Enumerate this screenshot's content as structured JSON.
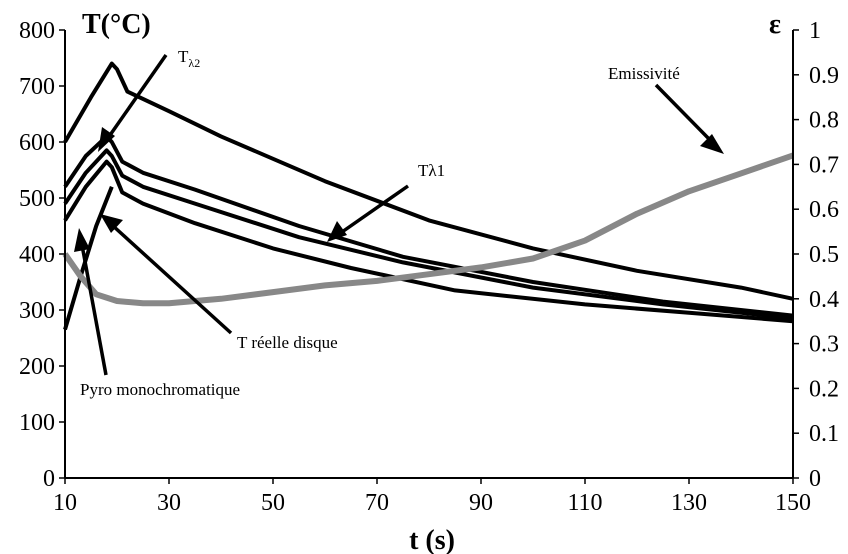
{
  "chart_data": {
    "type": "line",
    "xlabel": "t (s)",
    "ylabel_left": "T(°C)",
    "ylabel_right": "ε",
    "xlim": [
      10,
      150
    ],
    "ylim_left": [
      0,
      800
    ],
    "ylim_right": [
      0,
      1
    ],
    "x_ticks": [
      "10",
      "30",
      "50",
      "70",
      "90",
      "110",
      "130",
      "150"
    ],
    "y_left_ticks": [
      "0",
      "100",
      "200",
      "300",
      "400",
      "500",
      "600",
      "700",
      "800"
    ],
    "y_right_ticks": [
      "0",
      "0.1",
      "0.2",
      "0.3",
      "0.4",
      "0.5",
      "0.6",
      "0.7",
      "0.8",
      "0.9",
      "1"
    ],
    "grid": false,
    "series": [
      {
        "axis": "left",
        "color": "#000000",
        "x": [
          10,
          15,
          19,
          20,
          22,
          30,
          40,
          60,
          80,
          100,
          120,
          140,
          150
        ],
        "y": [
          600,
          680,
          740,
          730,
          690,
          655,
          610,
          530,
          460,
          410,
          370,
          340,
          320
        ]
      },
      {
        "axis": "left",
        "color": "#000000",
        "x": [
          10,
          14,
          18,
          19,
          21,
          25,
          35,
          55,
          75,
          100,
          125,
          150
        ],
        "y": [
          520,
          575,
          610,
          600,
          565,
          545,
          515,
          450,
          395,
          350,
          315,
          290
        ]
      },
      {
        "axis": "left",
        "color": "#000000",
        "x": [
          10,
          14,
          18,
          19,
          21,
          25,
          35,
          55,
          75,
          100,
          125,
          150
        ],
        "y": [
          490,
          545,
          585,
          575,
          540,
          520,
          490,
          430,
          385,
          340,
          310,
          285
        ]
      },
      {
        "axis": "left",
        "color": "#000000",
        "x": [
          10,
          14,
          18,
          19,
          21,
          25,
          35,
          50,
          65,
          85,
          110,
          130,
          150
        ],
        "y": [
          460,
          520,
          565,
          555,
          510,
          490,
          455,
          410,
          375,
          335,
          310,
          295,
          280
        ]
      },
      {
        "axis": "left",
        "color": "#000000",
        "x": [
          10,
          13,
          16,
          19
        ],
        "y": [
          265,
          360,
          450,
          520
        ]
      },
      {
        "axis": "right",
        "color": "#888888",
        "x": [
          10,
          13,
          16,
          20,
          25,
          30,
          40,
          50,
          60,
          70,
          80,
          90,
          100,
          110,
          120,
          130,
          140,
          150
        ],
        "y": [
          0.5,
          0.45,
          0.41,
          0.395,
          0.39,
          0.39,
          0.4,
          0.415,
          0.43,
          0.44,
          0.455,
          0.47,
          0.49,
          0.53,
          0.59,
          0.64,
          0.68,
          0.72
        ]
      }
    ],
    "annotations": [
      {
        "text": "T",
        "sub": "λ2"
      },
      {
        "text": "Emissivité"
      },
      {
        "text": "Tλ1"
      },
      {
        "text": "T  réelle disque"
      },
      {
        "text": "Pyro monochromatique"
      }
    ]
  }
}
